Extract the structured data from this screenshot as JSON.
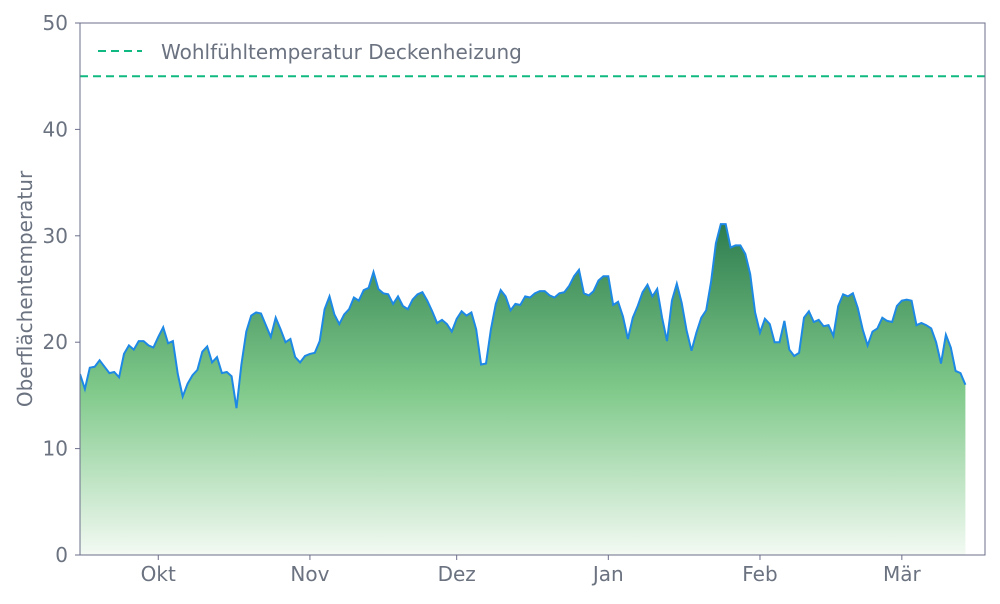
{
  "chart_data": {
    "type": "area",
    "title": "",
    "xlabel": "",
    "ylabel": "Oberflächentemperatur",
    "ylim": [
      0,
      50
    ],
    "y_ticks": [
      0,
      10,
      20,
      30,
      40,
      50
    ],
    "x_range": [
      "2023-09-15",
      "2024-03-18"
    ],
    "x_ticks": [
      {
        "date": "2023-10-01",
        "label": "Okt"
      },
      {
        "date": "2023-11-01",
        "label": "Nov"
      },
      {
        "date": "2023-12-01",
        "label": "Dez"
      },
      {
        "date": "2024-01-01",
        "label": "Jan"
      },
      {
        "date": "2024-02-01",
        "label": "Feb"
      },
      {
        "date": "2024-03-01",
        "label": "Mär"
      }
    ],
    "grid": false,
    "legend_position": "top-left",
    "reference_line": {
      "name": "Wohlfühltemperatur Deckenheizung",
      "value": 45,
      "color": "#10b981",
      "style": "dashed"
    },
    "series": [
      {
        "color": "#1e88e5",
        "fill_top_color": "#2e7d4f",
        "fill_bottom_color": "#f3faf3",
        "points": [
          [
            "2023-09-15",
            17.0
          ],
          [
            "2023-09-16",
            15.6
          ],
          [
            "2023-09-17",
            17.6
          ],
          [
            "2023-09-18",
            17.7
          ],
          [
            "2023-09-19",
            18.3
          ],
          [
            "2023-09-20",
            17.7
          ],
          [
            "2023-09-21",
            17.1
          ],
          [
            "2023-09-22",
            17.2
          ],
          [
            "2023-09-23",
            16.7
          ],
          [
            "2023-09-24",
            18.9
          ],
          [
            "2023-09-25",
            19.7
          ],
          [
            "2023-09-26",
            19.3
          ],
          [
            "2023-09-27",
            20.1
          ],
          [
            "2023-09-28",
            20.1
          ],
          [
            "2023-09-29",
            19.7
          ],
          [
            "2023-09-30",
            19.5
          ],
          [
            "2023-10-01",
            20.5
          ],
          [
            "2023-10-02",
            21.4
          ],
          [
            "2023-10-03",
            19.9
          ],
          [
            "2023-10-04",
            20.1
          ],
          [
            "2023-10-05",
            17.0
          ],
          [
            "2023-10-06",
            14.9
          ],
          [
            "2023-10-07",
            16.1
          ],
          [
            "2023-10-08",
            16.9
          ],
          [
            "2023-10-09",
            17.4
          ],
          [
            "2023-10-10",
            19.1
          ],
          [
            "2023-10-11",
            19.6
          ],
          [
            "2023-10-12",
            18.1
          ],
          [
            "2023-10-13",
            18.6
          ],
          [
            "2023-10-14",
            17.1
          ],
          [
            "2023-10-15",
            17.2
          ],
          [
            "2023-10-16",
            16.8
          ],
          [
            "2023-10-17",
            13.8
          ],
          [
            "2023-10-18",
            17.9
          ],
          [
            "2023-10-19",
            21.0
          ],
          [
            "2023-10-20",
            22.5
          ],
          [
            "2023-10-21",
            22.8
          ],
          [
            "2023-10-22",
            22.7
          ],
          [
            "2023-10-23",
            21.6
          ],
          [
            "2023-10-24",
            20.5
          ],
          [
            "2023-10-25",
            22.3
          ],
          [
            "2023-10-26",
            21.2
          ],
          [
            "2023-10-27",
            20.0
          ],
          [
            "2023-10-28",
            20.3
          ],
          [
            "2023-10-29",
            18.6
          ],
          [
            "2023-10-30",
            18.1
          ],
          [
            "2023-10-31",
            18.7
          ],
          [
            "2023-11-01",
            18.9
          ],
          [
            "2023-11-02",
            19.0
          ],
          [
            "2023-11-03",
            20.1
          ],
          [
            "2023-11-04",
            23.1
          ],
          [
            "2023-11-05",
            24.3
          ],
          [
            "2023-11-06",
            22.6
          ],
          [
            "2023-11-07",
            21.7
          ],
          [
            "2023-11-08",
            22.6
          ],
          [
            "2023-11-09",
            23.1
          ],
          [
            "2023-11-10",
            24.2
          ],
          [
            "2023-11-11",
            23.9
          ],
          [
            "2023-11-12",
            24.9
          ],
          [
            "2023-11-13",
            25.1
          ],
          [
            "2023-11-14",
            26.6
          ],
          [
            "2023-11-15",
            25.0
          ],
          [
            "2023-11-16",
            24.6
          ],
          [
            "2023-11-17",
            24.5
          ],
          [
            "2023-11-18",
            23.6
          ],
          [
            "2023-11-19",
            24.3
          ],
          [
            "2023-11-20",
            23.4
          ],
          [
            "2023-11-21",
            23.1
          ],
          [
            "2023-11-22",
            24.0
          ],
          [
            "2023-11-23",
            24.5
          ],
          [
            "2023-11-24",
            24.7
          ],
          [
            "2023-11-25",
            23.9
          ],
          [
            "2023-11-26",
            22.9
          ],
          [
            "2023-11-27",
            21.8
          ],
          [
            "2023-11-28",
            22.1
          ],
          [
            "2023-11-29",
            21.7
          ],
          [
            "2023-11-30",
            21.0
          ],
          [
            "2023-12-01",
            22.2
          ],
          [
            "2023-12-02",
            22.9
          ],
          [
            "2023-12-03",
            22.5
          ],
          [
            "2023-12-04",
            22.8
          ],
          [
            "2023-12-05",
            21.2
          ],
          [
            "2023-12-06",
            17.9
          ],
          [
            "2023-12-07",
            18.0
          ],
          [
            "2023-12-08",
            21.2
          ],
          [
            "2023-12-09",
            23.6
          ],
          [
            "2023-12-10",
            24.9
          ],
          [
            "2023-12-11",
            24.3
          ],
          [
            "2023-12-12",
            23.0
          ],
          [
            "2023-12-13",
            23.6
          ],
          [
            "2023-12-14",
            23.5
          ],
          [
            "2023-12-15",
            24.3
          ],
          [
            "2023-12-16",
            24.2
          ],
          [
            "2023-12-17",
            24.6
          ],
          [
            "2023-12-18",
            24.8
          ],
          [
            "2023-12-19",
            24.8
          ],
          [
            "2023-12-20",
            24.4
          ],
          [
            "2023-12-21",
            24.2
          ],
          [
            "2023-12-22",
            24.6
          ],
          [
            "2023-12-23",
            24.7
          ],
          [
            "2023-12-24",
            25.3
          ],
          [
            "2023-12-25",
            26.2
          ],
          [
            "2023-12-26",
            26.8
          ],
          [
            "2023-12-27",
            24.6
          ],
          [
            "2023-12-28",
            24.4
          ],
          [
            "2023-12-29",
            24.8
          ],
          [
            "2023-12-30",
            25.8
          ],
          [
            "2023-12-31",
            26.2
          ],
          [
            "2024-01-01",
            26.2
          ],
          [
            "2024-01-02",
            23.5
          ],
          [
            "2024-01-03",
            23.8
          ],
          [
            "2024-01-04",
            22.4
          ],
          [
            "2024-01-05",
            20.3
          ],
          [
            "2024-01-06",
            22.3
          ],
          [
            "2024-01-07",
            23.4
          ],
          [
            "2024-01-08",
            24.7
          ],
          [
            "2024-01-09",
            25.4
          ],
          [
            "2024-01-10",
            24.3
          ],
          [
            "2024-01-11",
            25.0
          ],
          [
            "2024-01-12",
            22.3
          ],
          [
            "2024-01-13",
            20.1
          ],
          [
            "2024-01-14",
            23.9
          ],
          [
            "2024-01-15",
            25.5
          ],
          [
            "2024-01-16",
            23.7
          ],
          [
            "2024-01-17",
            21.1
          ],
          [
            "2024-01-18",
            19.2
          ],
          [
            "2024-01-19",
            20.9
          ],
          [
            "2024-01-20",
            22.3
          ],
          [
            "2024-01-21",
            23.0
          ],
          [
            "2024-01-22",
            25.7
          ],
          [
            "2024-01-23",
            29.3
          ],
          [
            "2024-01-24",
            31.1
          ],
          [
            "2024-01-25",
            31.1
          ],
          [
            "2024-01-26",
            28.9
          ],
          [
            "2024-01-27",
            29.1
          ],
          [
            "2024-01-28",
            29.1
          ],
          [
            "2024-01-29",
            28.3
          ],
          [
            "2024-01-30",
            26.4
          ],
          [
            "2024-01-31",
            22.8
          ],
          [
            "2024-02-01",
            20.9
          ],
          [
            "2024-02-02",
            22.2
          ],
          [
            "2024-02-03",
            21.7
          ],
          [
            "2024-02-04",
            20.0
          ],
          [
            "2024-02-05",
            20.0
          ],
          [
            "2024-02-06",
            22.0
          ],
          [
            "2024-02-07",
            19.3
          ],
          [
            "2024-02-08",
            18.7
          ],
          [
            "2024-02-09",
            19.0
          ],
          [
            "2024-02-10",
            22.3
          ],
          [
            "2024-02-11",
            22.9
          ],
          [
            "2024-02-12",
            21.9
          ],
          [
            "2024-02-13",
            22.1
          ],
          [
            "2024-02-14",
            21.5
          ],
          [
            "2024-02-15",
            21.6
          ],
          [
            "2024-02-16",
            20.6
          ],
          [
            "2024-02-17",
            23.4
          ],
          [
            "2024-02-18",
            24.5
          ],
          [
            "2024-02-19",
            24.3
          ],
          [
            "2024-02-20",
            24.6
          ],
          [
            "2024-02-21",
            23.2
          ],
          [
            "2024-02-22",
            21.2
          ],
          [
            "2024-02-23",
            19.7
          ],
          [
            "2024-02-24",
            21.0
          ],
          [
            "2024-02-25",
            21.3
          ],
          [
            "2024-02-26",
            22.3
          ],
          [
            "2024-02-27",
            22.0
          ],
          [
            "2024-02-28",
            21.9
          ],
          [
            "2024-02-29",
            23.4
          ],
          [
            "2024-03-01",
            23.9
          ],
          [
            "2024-03-02",
            24.0
          ],
          [
            "2024-03-03",
            23.9
          ],
          [
            "2024-03-04",
            21.6
          ],
          [
            "2024-03-05",
            21.8
          ],
          [
            "2024-03-06",
            21.6
          ],
          [
            "2024-03-07",
            21.3
          ],
          [
            "2024-03-08",
            20.0
          ],
          [
            "2024-03-09",
            18.0
          ],
          [
            "2024-03-10",
            20.7
          ],
          [
            "2024-03-11",
            19.5
          ],
          [
            "2024-03-12",
            17.3
          ],
          [
            "2024-03-13",
            17.1
          ],
          [
            "2024-03-14",
            16.0
          ]
        ]
      }
    ]
  }
}
